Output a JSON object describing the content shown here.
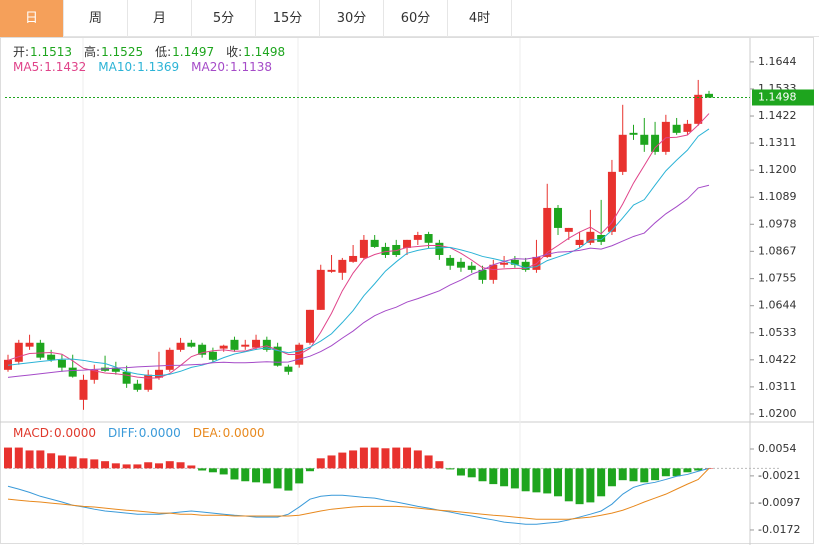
{
  "tabs": [
    "日",
    "周",
    "月",
    "5分",
    "15分",
    "30分",
    "60分",
    "4时"
  ],
  "chart_data": [
    {
      "type": "candlestick",
      "ohlc_info": [
        {
          "label": "开:",
          "value": 1.1513
        },
        {
          "label": "高:",
          "value": 1.1525
        },
        {
          "label": "低:",
          "value": 1.1497
        },
        {
          "label": "收:",
          "value": 1.1498
        }
      ],
      "up_color": "#e8322e",
      "down_color": "#1ea51e",
      "open": [
        1.0381,
        1.0414,
        1.0476,
        1.0492,
        1.0443,
        1.0422,
        1.039,
        1.0258,
        1.034,
        1.039,
        1.039,
        1.0373,
        1.0324,
        1.0299,
        1.0349,
        1.0381,
        1.0463,
        1.0492,
        1.0484,
        1.0455,
        1.0468,
        1.0504,
        1.0476,
        1.0472,
        1.0504,
        1.0476,
        1.0394,
        1.0402,
        1.0492,
        1.0627,
        1.0783,
        1.0779,
        1.0824,
        1.084,
        1.0914,
        1.0885,
        1.0893,
        1.0881,
        1.0914,
        1.0938,
        1.0902,
        1.084,
        1.0824,
        1.0808,
        1.0791,
        1.075,
        1.0812,
        1.0832,
        1.0824,
        1.0791,
        1.0844,
        1.1045,
        1.0947,
        1.0893,
        1.0902,
        1.0934,
        1.0947,
        1.1193,
        1.1353,
        1.1345,
        1.1345,
        1.1275,
        1.1386,
        1.1357,
        1.139,
        1.1513
      ],
      "high": [
        1.0443,
        1.0504,
        1.0525,
        1.0504,
        1.0463,
        1.0443,
        1.0443,
        1.0361,
        1.0402,
        1.0439,
        1.0414,
        1.0398,
        1.034,
        1.0381,
        1.0455,
        1.0472,
        1.0512,
        1.0504,
        1.0492,
        1.0472,
        1.0484,
        1.0517,
        1.0504,
        1.0525,
        1.0517,
        1.0492,
        1.0402,
        1.0492,
        1.0627,
        1.0812,
        1.0852,
        1.084,
        1.0893,
        1.0934,
        1.0934,
        1.0902,
        1.0914,
        1.0914,
        1.0947,
        1.0947,
        1.0914,
        1.0852,
        1.084,
        1.0824,
        1.0808,
        1.0832,
        1.0848,
        1.0848,
        1.084,
        1.0914,
        1.1144,
        1.1057,
        1.0963,
        1.0947,
        1.1037,
        1.1078,
        1.1242,
        1.1468,
        1.1386,
        1.1414,
        1.1398,
        1.1427,
        1.1414,
        1.1406,
        1.157,
        1.1525
      ],
      "low": [
        1.0373,
        1.0402,
        1.0463,
        1.0422,
        1.0414,
        1.0373,
        1.0349,
        1.0217,
        1.0324,
        1.0373,
        1.0361,
        1.0307,
        1.0291,
        1.0291,
        1.034,
        1.0373,
        1.0455,
        1.0472,
        1.0431,
        1.0414,
        1.0455,
        1.0455,
        1.0463,
        1.0463,
        1.0455,
        1.0394,
        1.0361,
        1.039,
        1.0484,
        1.0627,
        1.0779,
        1.075,
        1.082,
        1.0832,
        1.0881,
        1.084,
        1.0844,
        1.0852,
        1.0893,
        1.0881,
        1.0832,
        1.0791,
        1.0783,
        1.0779,
        1.0734,
        1.0734,
        1.08,
        1.08,
        1.0783,
        1.0779,
        1.084,
        1.0934,
        1.0914,
        1.0881,
        1.0893,
        1.0893,
        1.0934,
        1.118,
        1.1324,
        1.1275,
        1.1263,
        1.1263,
        1.1345,
        1.1345,
        1.1382,
        1.1497
      ],
      "close": [
        1.0422,
        1.0492,
        1.0492,
        1.0431,
        1.0422,
        1.039,
        1.0353,
        1.034,
        1.0381,
        1.0377,
        1.0373,
        1.0324,
        1.0299,
        1.0361,
        1.0381,
        1.0463,
        1.0492,
        1.0476,
        1.0443,
        1.0422,
        1.048,
        1.0463,
        1.0484,
        1.0504,
        1.0463,
        1.0398,
        1.0373,
        1.0484,
        1.0627,
        1.0791,
        1.0791,
        1.0832,
        1.0848,
        1.0914,
        1.0885,
        1.0852,
        1.0852,
        1.0914,
        1.0934,
        1.0902,
        1.0852,
        1.0808,
        1.08,
        1.0791,
        1.075,
        1.0812,
        1.082,
        1.0812,
        1.0791,
        1.0844,
        1.1045,
        1.0963,
        1.0963,
        1.0914,
        1.0947,
        1.0906,
        1.1193,
        1.1345,
        1.1345,
        1.1304,
        1.1275,
        1.1398,
        1.1353,
        1.139,
        1.1509,
        1.1498
      ],
      "ma": [
        {
          "name": "MA5:",
          "legend_value": 1.1432,
          "color": "#e0448a",
          "values": [
            1.042,
            1.0435,
            1.0448,
            1.045,
            1.0452,
            1.0445,
            1.0418,
            1.0387,
            1.0377,
            1.0368,
            1.0365,
            1.0359,
            1.0351,
            1.0347,
            1.0348,
            1.0366,
            1.0399,
            1.0435,
            1.0451,
            1.0459,
            1.0463,
            1.0457,
            1.0458,
            1.0471,
            1.0479,
            1.0462,
            1.0444,
            1.0444,
            1.0469,
            1.0535,
            1.0613,
            1.0705,
            1.0778,
            1.0835,
            1.0854,
            1.0866,
            1.087,
            1.0883,
            1.0887,
            1.0891,
            1.0891,
            1.0882,
            1.0859,
            1.0831,
            1.08,
            1.0792,
            1.0795,
            1.0797,
            1.0797,
            1.0816,
            1.0862,
            1.0891,
            1.0921,
            1.0946,
            1.0966,
            1.0939,
            1.0985,
            1.1061,
            1.1147,
            1.1219,
            1.1292,
            1.1333,
            1.1335,
            1.1344,
            1.1385,
            1.1432
          ]
        },
        {
          "name": "MA10:",
          "legend_value": 1.1369,
          "color": "#2bb3d6",
          "values": [
            1.04,
            1.0405,
            1.041,
            1.0415,
            1.042,
            1.0425,
            1.0425,
            1.042,
            1.0412,
            1.0407,
            1.0392,
            1.0373,
            1.0364,
            1.0358,
            1.0357,
            1.0363,
            1.0375,
            1.0391,
            1.04,
            1.0413,
            1.0431,
            1.0446,
            1.0455,
            1.0465,
            1.0471,
            1.046,
            1.0451,
            1.0458,
            1.0474,
            1.0499,
            1.0529,
            1.0575,
            1.0624,
            1.0685,
            1.0734,
            1.0786,
            1.0824,
            1.0859,
            1.0871,
            1.0879,
            1.0881,
            1.0883,
            1.0873,
            1.0861,
            1.0846,
            1.0837,
            1.0827,
            1.0814,
            1.0799,
            1.0804,
            1.0829,
            1.0844,
            1.0859,
            1.0881,
            1.0914,
            1.0915,
            1.0953,
            1.1004,
            1.1057,
            1.1079,
            1.1139,
            1.1197,
            1.1241,
            1.1282,
            1.1339,
            1.1369
          ]
        },
        {
          "name": "MA20:",
          "legend_value": 1.1138,
          "color": "#a54bc8",
          "values": [
            1.035,
            1.0355,
            1.036,
            1.0365,
            1.037,
            1.0375,
            1.0378,
            1.038,
            1.0383,
            1.0385,
            1.0388,
            1.039,
            1.0393,
            1.0395,
            1.0397,
            1.0399,
            1.04,
            1.0402,
            1.0404,
            1.041,
            1.0412,
            1.041,
            1.041,
            1.0412,
            1.0414,
            1.0412,
            1.0413,
            1.0425,
            1.0437,
            1.0456,
            1.048,
            1.0511,
            1.054,
            1.0575,
            1.0603,
            1.0623,
            1.0638,
            1.0659,
            1.0673,
            1.0689,
            1.0705,
            1.0729,
            1.0749,
            1.0773,
            1.079,
            1.0812,
            1.0826,
            1.0837,
            1.0835,
            1.0842,
            1.0855,
            1.0864,
            1.0866,
            1.0871,
            1.088,
            1.0876,
            1.089,
            1.0909,
            1.0928,
            1.0942,
            1.0984,
            1.1021,
            1.105,
            1.1082,
            1.1127,
            1.1138
          ]
        }
      ],
      "last_price": 1.1498,
      "last_color": "#1ea51e",
      "ylim": [
        1.0167,
        1.1742
      ],
      "yticks": [
        1.1644,
        1.1533,
        1.1422,
        1.1311,
        {
          "value": 1.12,
          "label": "1.1200"
        },
        1.1089,
        1.0978,
        1.0867,
        1.0755,
        1.0644,
        1.0533,
        1.0422,
        1.0311,
        {
          "value": 1.02,
          "label": "1.0200"
        }
      ]
    },
    {
      "type": "macd",
      "legend": [
        {
          "name": "MACD:",
          "value": 0,
          "value_label": "0.0000",
          "color": "#e0392c"
        },
        {
          "name": "DIFF:",
          "value": 0,
          "value_label": "0.0000",
          "color": "#3a9ad9"
        },
        {
          "name": "DEA:",
          "value": 0,
          "value_label": "0.0000",
          "color": "#e8891e"
        }
      ],
      "up_color": "#e8322e",
      "down_color": "#1ea51e",
      "macd": [
        0.0058,
        0.0058,
        0.005,
        0.005,
        0.0042,
        0.0036,
        0.0033,
        0.0028,
        0.0025,
        0.002,
        0.0014,
        0.0011,
        0.0011,
        0.0017,
        0.0014,
        0.002,
        0.0017,
        0.0008,
        -0.0006,
        -0.0011,
        -0.0017,
        -0.0031,
        -0.0036,
        -0.0039,
        -0.0042,
        -0.0056,
        -0.0062,
        -0.0042,
        -0.0008,
        0.0028,
        0.0036,
        0.0044,
        0.005,
        0.0058,
        0.0058,
        0.0056,
        0.0058,
        0.0058,
        0.005,
        0.0036,
        0.002,
        -0.0003,
        -0.002,
        -0.0025,
        -0.0036,
        -0.0044,
        -0.005,
        -0.0056,
        -0.0064,
        -0.0067,
        -0.007,
        -0.0078,
        -0.0092,
        -0.01,
        -0.0095,
        -0.0078,
        -0.005,
        -0.0033,
        -0.0036,
        -0.0039,
        -0.0033,
        -0.0022,
        -0.0022,
        -0.0011,
        -0.0006,
        0
      ],
      "diff": [
        -0.005,
        -0.0058,
        -0.0067,
        -0.0078,
        -0.0086,
        -0.0094,
        -0.0103,
        -0.0108,
        -0.0114,
        -0.0119,
        -0.0122,
        -0.0125,
        -0.0128,
        -0.0128,
        -0.0128,
        -0.0125,
        -0.0122,
        -0.0119,
        -0.0122,
        -0.0125,
        -0.0128,
        -0.0131,
        -0.0133,
        -0.0136,
        -0.0136,
        -0.0136,
        -0.0128,
        -0.0108,
        -0.0086,
        -0.0078,
        -0.0075,
        -0.0075,
        -0.0078,
        -0.0081,
        -0.0083,
        -0.0089,
        -0.0094,
        -0.01,
        -0.0106,
        -0.0111,
        -0.0117,
        -0.0122,
        -0.0128,
        -0.0133,
        -0.0139,
        -0.0144,
        -0.015,
        -0.0153,
        -0.0156,
        -0.0156,
        -0.0153,
        -0.015,
        -0.0144,
        -0.0136,
        -0.0128,
        -0.0119,
        -0.01,
        -0.0072,
        -0.0053,
        -0.0044,
        -0.0039,
        -0.0031,
        -0.0022,
        -0.0017,
        -0.0008,
        0
      ],
      "dea": [
        -0.0086,
        -0.0089,
        -0.0092,
        -0.0094,
        -0.0097,
        -0.01,
        -0.0103,
        -0.0106,
        -0.0108,
        -0.0111,
        -0.0114,
        -0.0117,
        -0.0119,
        -0.0122,
        -0.0125,
        -0.0125,
        -0.0128,
        -0.0128,
        -0.0131,
        -0.0131,
        -0.0131,
        -0.0133,
        -0.0133,
        -0.0133,
        -0.0133,
        -0.0133,
        -0.0133,
        -0.0131,
        -0.0125,
        -0.0119,
        -0.0114,
        -0.0111,
        -0.0108,
        -0.0106,
        -0.0106,
        -0.0106,
        -0.0106,
        -0.0108,
        -0.0111,
        -0.0114,
        -0.0117,
        -0.0119,
        -0.0122,
        -0.0125,
        -0.0128,
        -0.0131,
        -0.0133,
        -0.0136,
        -0.0139,
        -0.0142,
        -0.0142,
        -0.0142,
        -0.0142,
        -0.0139,
        -0.0136,
        -0.0131,
        -0.0125,
        -0.0117,
        -0.0106,
        -0.0094,
        -0.0083,
        -0.0072,
        -0.0058,
        -0.0044,
        -0.0031,
        0
      ],
      "ylim": [
        -0.02,
        0.0121
      ],
      "yticks": [
        0.0054,
        -0.0021,
        -0.0097,
        -0.0172
      ]
    }
  ]
}
